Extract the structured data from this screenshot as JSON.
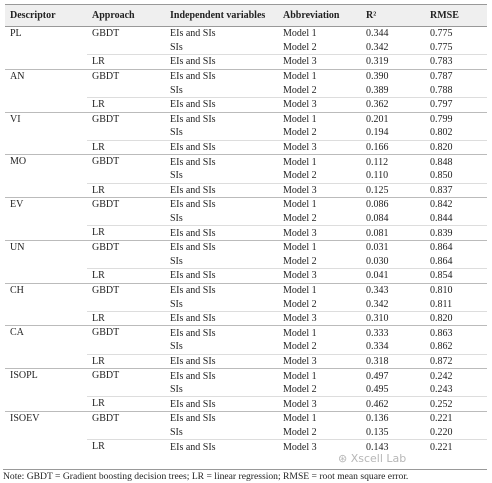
{
  "table": {
    "header": [
      "Descriptor",
      "Approach",
      "Independent variables",
      "Abbreviation",
      "R²",
      "RMSE"
    ],
    "groups": [
      {
        "descriptor": "PL",
        "rows": [
          {
            "approach": "GBDT",
            "variables": "EIs and SIs",
            "abbreviation": "Model 1",
            "r2": "0.344",
            "rmse": "0.775"
          },
          {
            "variables": "SIs",
            "abbreviation": "Model 2",
            "r2": "0.342",
            "rmse": "0.775"
          },
          {
            "approach": "LR",
            "variables": "EIs and SIs",
            "abbreviation": "Model 3",
            "r2": "0.319",
            "rmse": "0.783"
          }
        ]
      },
      {
        "descriptor": "AN",
        "rows": [
          {
            "approach": "GBDT",
            "variables": "EIs and SIs",
            "abbreviation": "Model 1",
            "r2": "0.390",
            "rmse": "0.787"
          },
          {
            "variables": "SIs",
            "abbreviation": "Model 2",
            "r2": "0.389",
            "rmse": "0.788"
          },
          {
            "approach": "LR",
            "variables": "EIs and SIs",
            "abbreviation": "Model 3",
            "r2": "0.362",
            "rmse": "0.797"
          }
        ]
      },
      {
        "descriptor": "VI",
        "rows": [
          {
            "approach": "GBDT",
            "variables": "EIs and SIs",
            "abbreviation": "Model 1",
            "r2": "0.201",
            "rmse": "0.799"
          },
          {
            "variables": "SIs",
            "abbreviation": "Model 2",
            "r2": "0.194",
            "rmse": "0.802"
          },
          {
            "approach": "LR",
            "variables": "EIs and SIs",
            "abbreviation": "Model 3",
            "r2": "0.166",
            "rmse": "0.820"
          }
        ]
      },
      {
        "descriptor": "MO",
        "rows": [
          {
            "approach": "GBDT",
            "variables": "EIs and SIs",
            "abbreviation": "Model 1",
            "r2": "0.112",
            "rmse": "0.848"
          },
          {
            "variables": "SIs",
            "abbreviation": "Model 2",
            "r2": "0.110",
            "rmse": "0.850"
          },
          {
            "approach": "LR",
            "variables": "EIs and SIs",
            "abbreviation": "Model 3",
            "r2": "0.125",
            "rmse": "0.837"
          }
        ]
      },
      {
        "descriptor": "EV",
        "rows": [
          {
            "approach": "GBDT",
            "variables": "EIs and SIs",
            "abbreviation": "Model 1",
            "r2": "0.086",
            "rmse": "0.842"
          },
          {
            "variables": "SIs",
            "abbreviation": "Model 2",
            "r2": "0.084",
            "rmse": "0.844"
          },
          {
            "approach": "LR",
            "variables": "EIs and SIs",
            "abbreviation": "Model 3",
            "r2": "0.081",
            "rmse": "0.839"
          }
        ]
      },
      {
        "descriptor": "UN",
        "rows": [
          {
            "approach": "GBDT",
            "variables": "EIs and SIs",
            "abbreviation": "Model 1",
            "r2": "0.031",
            "rmse": "0.864"
          },
          {
            "variables": "SIs",
            "abbreviation": "Model 2",
            "r2": "0.030",
            "rmse": "0.864"
          },
          {
            "approach": "LR",
            "variables": "EIs and SIs",
            "abbreviation": "Model 3",
            "r2": "0.041",
            "rmse": "0.854"
          }
        ]
      },
      {
        "descriptor": "CH",
        "rows": [
          {
            "approach": "GBDT",
            "variables": "EIs and SIs",
            "abbreviation": "Model 1",
            "r2": "0.343",
            "rmse": "0.810"
          },
          {
            "variables": "SIs",
            "abbreviation": "Model 2",
            "r2": "0.342",
            "rmse": "0.811"
          },
          {
            "approach": "LR",
            "variables": "EIs and SIs",
            "abbreviation": "Model 3",
            "r2": "0.310",
            "rmse": "0.820"
          }
        ]
      },
      {
        "descriptor": "CA",
        "rows": [
          {
            "approach": "GBDT",
            "variables": "EIs and SIs",
            "abbreviation": "Model 1",
            "r2": "0.333",
            "rmse": "0.863"
          },
          {
            "variables": "SIs",
            "abbreviation": "Model 2",
            "r2": "0.334",
            "rmse": "0.862"
          },
          {
            "approach": "LR",
            "variables": "EIs and SIs",
            "abbreviation": "Model 3",
            "r2": "0.318",
            "rmse": "0.872"
          }
        ]
      },
      {
        "descriptor": "ISOPL",
        "rows": [
          {
            "approach": "GBDT",
            "variables": "EIs and SIs",
            "abbreviation": "Model 1",
            "r2": "0.497",
            "rmse": "0.242"
          },
          {
            "variables": "SIs",
            "abbreviation": "Model 2",
            "r2": "0.495",
            "rmse": "0.243"
          },
          {
            "approach": "LR",
            "variables": "EIs and SIs",
            "abbreviation": "Model 3",
            "r2": "0.462",
            "rmse": "0.252"
          }
        ]
      },
      {
        "descriptor": "ISOEV",
        "rows": [
          {
            "approach": "GBDT",
            "variables": "EIs and SIs",
            "abbreviation": "Model 1",
            "r2": "0.136",
            "rmse": "0.221"
          },
          {
            "variables": "SIs",
            "abbreviation": "Model 2",
            "r2": "0.135",
            "rmse": "0.220"
          },
          {
            "approach": "LR",
            "variables": "EIs and SIs",
            "abbreviation": "Model 3",
            "r2": "0.143",
            "rmse": "0.221"
          }
        ]
      }
    ],
    "note": "Note: GBDT = Gradient boosting decision trees; LR = linear regression; RMSE = root mean square error."
  },
  "watermark": "Xscell Lab"
}
